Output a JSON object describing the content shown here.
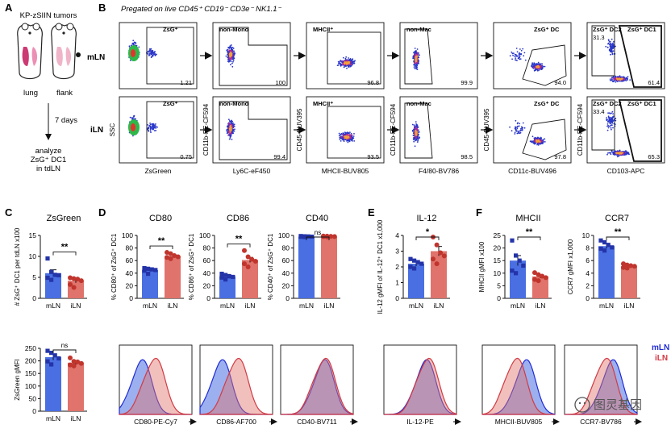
{
  "panel_letters": [
    "A",
    "B",
    "C",
    "D",
    "E",
    "F"
  ],
  "panel_a": {
    "title": "KP-zSIIN tumors",
    "site_left": "lung",
    "site_right": "flank",
    "duration": "7 days",
    "readout_lines": [
      "analyze",
      "ZsG⁺ DC1",
      "in tdLN"
    ]
  },
  "panel_b": {
    "header": "Pregated on live CD45⁺ CD19⁻ CD3e⁻ NK1.1⁻",
    "row_labels": [
      "mLN",
      "iLN"
    ],
    "gate_titles": [
      "ZsG⁺",
      "non-Mono",
      "MHCII⁺",
      "non-Mac",
      "ZsG⁺ DC"
    ],
    "dc2_label": "ZsG⁺ DC2",
    "dc1_label": "ZsG⁺ DC1",
    "x_labels": [
      "ZsGreen",
      "Ly6C-eF450",
      "MHCII-BUV805",
      "F4/80-BV786",
      "CD11c-BUV496",
      "CD103-APC"
    ],
    "y_labels": [
      "SSC",
      "CD11b-PE-CF594",
      "CD45-BUV395",
      "CD11b-PE-CF594",
      "CD45-BUV395",
      "CD11b-PE-CF594"
    ],
    "percents_mLN": [
      "1.21",
      "100",
      "96.8",
      "99.9",
      "94.0",
      "61.4"
    ],
    "percents_iLN": [
      "0.75",
      "99.4",
      "93.5",
      "98.5",
      "97.8",
      "65.3"
    ],
    "dc2_percents": [
      "31.3",
      "33.4"
    ]
  },
  "colors": {
    "mLN": "#4a6fe3",
    "iLN": "#e0736b",
    "mLN_dark": "#2434a8",
    "iLN_dark": "#c0352d",
    "hist_mLN_line": "#1f2bd6",
    "hist_iLN_line": "#d23a43"
  },
  "chart_data": [
    {
      "type": "bar",
      "panel": "C",
      "title": "ZsGreen",
      "ylabel": "# ZsG⁺ DC1 per tdLN x100",
      "categories": [
        "mLN",
        "iLN"
      ],
      "values": [
        6.0,
        4.2
      ],
      "errors": [
        0.8,
        0.5
      ],
      "points": [
        [
          9.5,
          6.3,
          5.6,
          5.5,
          4.9,
          4.4
        ],
        [
          4.9,
          4.7,
          4.6,
          4.2,
          3.3,
          2.6
        ]
      ],
      "ylim": [
        0,
        15
      ],
      "yticks": [
        "0",
        "5",
        "10",
        "15"
      ],
      "significance": "**"
    },
    {
      "type": "bar",
      "panel": "C2",
      "title": "",
      "ylabel": "ZsGreen gMFI",
      "categories": [
        "mLN",
        "iLN"
      ],
      "values": [
        215,
        193
      ],
      "errors": [
        12,
        8
      ],
      "points": [
        [
          240,
          232,
          222,
          210,
          198,
          186
        ],
        [
          212,
          198,
          196,
          190,
          184,
          180
        ]
      ],
      "ylim": [
        0,
        250
      ],
      "yticks": [
        "0",
        "50",
        "100",
        "150",
        "200",
        "250"
      ],
      "significance": "ns"
    },
    {
      "type": "bar",
      "panel": "D",
      "title": "CD80",
      "ylabel": "% CD80⁺ of ZsG⁺ DC1",
      "categories": [
        "mLN",
        "iLN"
      ],
      "values": [
        45,
        67
      ],
      "errors": [
        2,
        2
      ],
      "points": [
        [
          48,
          47,
          46,
          45,
          44,
          39
        ],
        [
          73,
          71,
          68,
          66,
          65,
          63
        ]
      ],
      "ylim": [
        0,
        100
      ],
      "yticks": [
        "0",
        "20",
        "40",
        "60",
        "80",
        "100"
      ],
      "significance": "**"
    },
    {
      "type": "bar",
      "panel": "D",
      "title": "CD86",
      "ylabel": "% CD86⁺ of ZsG⁺ DC1",
      "categories": [
        "mLN",
        "iLN"
      ],
      "values": [
        35,
        61
      ],
      "errors": [
        3,
        4
      ],
      "points": [
        [
          39,
          37,
          35,
          34,
          33,
          30
        ],
        [
          76,
          66,
          62,
          59,
          55,
          50
        ]
      ],
      "ylim": [
        0,
        100
      ],
      "yticks": [
        "0",
        "20",
        "40",
        "60",
        "80",
        "100"
      ],
      "significance": "**"
    },
    {
      "type": "bar",
      "panel": "D",
      "title": "CD40",
      "ylabel": "% CD40⁺ of ZsG⁺ DC1",
      "categories": [
        "mLN",
        "iLN"
      ],
      "values": [
        98,
        98
      ],
      "errors": [
        0.5,
        0.5
      ],
      "points": [
        [
          99,
          98.6,
          98.4,
          98,
          97.8,
          97.5
        ],
        [
          99,
          98.8,
          98.5,
          98.2,
          98,
          97.6
        ]
      ],
      "ylim": [
        0,
        100
      ],
      "yticks": [
        "0",
        "20",
        "40",
        "60",
        "80",
        "100"
      ],
      "significance": "ns"
    },
    {
      "type": "bar",
      "panel": "E",
      "title": "IL-12",
      "ylabel": "IL-12 gMFI of IL-12⁺ DC1 x1,000",
      "categories": [
        "mLN",
        "iLN"
      ],
      "values": [
        2.2,
        3.0
      ],
      "errors": [
        0.15,
        0.3
      ],
      "points": [
        [
          2.5,
          2.4,
          2.3,
          2.2,
          2.0,
          1.9
        ],
        [
          3.9,
          3.4,
          2.9,
          2.7,
          2.5,
          2.2
        ]
      ],
      "ylim": [
        0,
        4
      ],
      "yticks": [
        "0",
        "1",
        "2",
        "3",
        "4"
      ],
      "significance": "*"
    },
    {
      "type": "bar",
      "panel": "F",
      "title": "MHCII",
      "ylabel": "MHCII gMFI x100",
      "categories": [
        "mLN",
        "iLN"
      ],
      "values": [
        15,
        8.7
      ],
      "errors": [
        2,
        0.7
      ],
      "points": [
        [
          23,
          17,
          15,
          13,
          11,
          10
        ],
        [
          10.2,
          9.4,
          8.8,
          8.2,
          7.5,
          7.0
        ]
      ],
      "ylim": [
        0,
        25
      ],
      "yticks": [
        "0",
        "5",
        "10",
        "15",
        "20",
        "25"
      ],
      "significance": "**"
    },
    {
      "type": "bar",
      "panel": "F",
      "title": "CCR7",
      "ylabel": "CCR7 gMFI x1,000",
      "categories": [
        "mLN",
        "iLN"
      ],
      "values": [
        8.3,
        5.1
      ],
      "errors": [
        0.35,
        0.2
      ],
      "points": [
        [
          9.2,
          8.9,
          8.5,
          8.1,
          7.9,
          7.6
        ],
        [
          5.5,
          5.3,
          5.2,
          5.1,
          4.9,
          4.8
        ]
      ],
      "ylim": [
        0,
        10
      ],
      "yticks": [
        "0",
        "2",
        "4",
        "6",
        "8",
        "10"
      ],
      "significance": "**"
    },
    {
      "type": "histogram",
      "panel": "D",
      "xlabel": "CD80-PE-Cy7",
      "series": [
        {
          "name": "mLN",
          "peak": 0.33
        },
        {
          "name": "iLN",
          "peak": 0.52
        }
      ]
    },
    {
      "type": "histogram",
      "panel": "D",
      "xlabel": "CD86-AF700",
      "series": [
        {
          "name": "mLN",
          "peak": 0.32
        },
        {
          "name": "iLN",
          "peak": 0.55
        }
      ]
    },
    {
      "type": "histogram",
      "panel": "D",
      "xlabel": "CD40-BV711",
      "series": [
        {
          "name": "mLN",
          "peak": 0.62
        },
        {
          "name": "iLN",
          "peak": 0.64
        }
      ]
    },
    {
      "type": "histogram",
      "panel": "E",
      "xlabel": "IL-12-PE",
      "series": [
        {
          "name": "mLN",
          "peak": 0.6
        },
        {
          "name": "iLN",
          "peak": 0.64
        }
      ]
    },
    {
      "type": "histogram",
      "panel": "F",
      "xlabel": "MHCII-BUV805",
      "series": [
        {
          "name": "mLN",
          "peak": 0.62
        },
        {
          "name": "iLN",
          "peak": 0.5
        }
      ]
    },
    {
      "type": "histogram",
      "panel": "F",
      "xlabel": "CCR7-BV786",
      "series": [
        {
          "name": "mLN",
          "peak": 0.68
        },
        {
          "name": "iLN",
          "peak": 0.6
        }
      ]
    }
  ],
  "legend": {
    "mLN": "mLN",
    "iLN": "iLN"
  },
  "watermark": "图灵基因"
}
